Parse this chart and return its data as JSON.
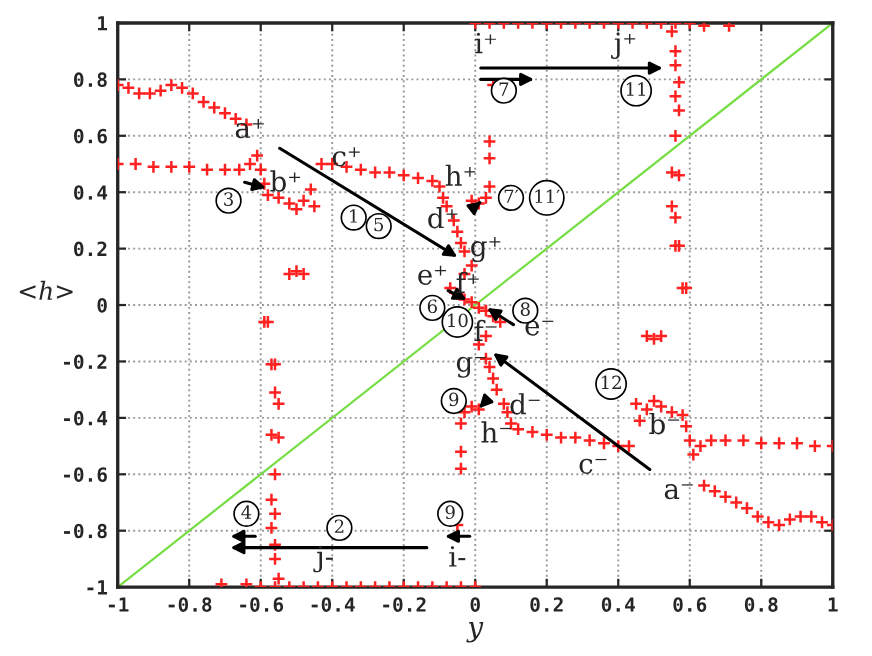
{
  "chart_data": {
    "type": "scatter",
    "xlabel": "y",
    "ylabel": "<h>",
    "xlim": [
      -1,
      1
    ],
    "ylim": [
      -1,
      1
    ],
    "xticks": [
      -1,
      -0.8,
      -0.6,
      -0.4,
      -0.2,
      0,
      0.2,
      0.4,
      0.6,
      0.8,
      1
    ],
    "yticks": [
      -1,
      -0.8,
      -0.6,
      -0.4,
      -0.2,
      0,
      0.2,
      0.4,
      0.6,
      0.8,
      1
    ],
    "grid": true,
    "series": [
      {
        "color": "#ff2020",
        "marker": "cross",
        "x": [
          -1,
          -0.97,
          -0.94,
          -0.91,
          -0.88,
          -0.85,
          -0.82,
          -0.79,
          -0.76,
          -0.73,
          -0.7,
          -0.67,
          -0.64,
          -1,
          -0.95,
          -0.9,
          -0.85,
          -0.8,
          -0.75,
          -0.7,
          -0.66,
          -0.63,
          -0.61,
          -0.6,
          -0.59,
          -0.58,
          -0.55,
          -0.52,
          -0.5,
          -0.48,
          -0.46,
          -0.45,
          -0.43,
          -0.4,
          -0.36,
          -0.32,
          -0.28,
          -0.24,
          -0.2,
          -0.16,
          -0.12,
          -0.1,
          -0.09,
          -0.08,
          -0.06,
          -0.05,
          -0.04,
          -0.03,
          -0.03,
          -0.01,
          -0.07,
          -0.05,
          -0.03,
          -0.01,
          -0.01,
          0.01,
          0.03,
          0.04,
          -0.52,
          -0.5,
          -0.48,
          0.04,
          0.04,
          0.05,
          0,
          0.04,
          0.08,
          0.12,
          0.16,
          0.2,
          0.24,
          0.28,
          0.32,
          0.36,
          0.4,
          0.44,
          0.48,
          0.52,
          0.56,
          0.6,
          0.64,
          0.71,
          0.55,
          0.56,
          0.56,
          0.57,
          0.56,
          0.57,
          0.56,
          0.55,
          0.57,
          0.55,
          0.56,
          0.56,
          0.57,
          0.59,
          0.58
        ],
        "values": [
          0.78,
          0.77,
          0.75,
          0.75,
          0.76,
          0.78,
          0.77,
          0.75,
          0.72,
          0.7,
          0.68,
          0.66,
          0.64,
          0.5,
          0.5,
          0.49,
          0.49,
          0.49,
          0.48,
          0.48,
          0.48,
          0.5,
          0.53,
          0.48,
          0.43,
          0.39,
          0.38,
          0.36,
          0.34,
          0.37,
          0.41,
          0.35,
          0.5,
          0.5,
          0.49,
          0.48,
          0.47,
          0.47,
          0.46,
          0.45,
          0.44,
          0.42,
          0.38,
          0.35,
          0.3,
          0.26,
          0.22,
          0.19,
          0.11,
          0.14,
          0.06,
          0.04,
          0.02,
          0.01,
          0.37,
          0.36,
          0.38,
          0.42,
          0.11,
          0.12,
          0.11,
          0.58,
          0.52,
          0.78,
          1,
          1,
          1,
          1,
          1,
          1,
          1,
          1,
          1,
          1,
          1,
          1,
          1,
          1,
          1,
          1,
          0.99,
          0.99,
          0.97,
          0.9,
          0.85,
          0.79,
          0.74,
          0.69,
          0.6,
          0.47,
          0.46,
          0.35,
          0.31,
          0.21,
          0.21,
          0.06,
          0.06
        ]
      },
      {
        "color": "#ff2020",
        "marker": "cross",
        "x": [
          1,
          0.97,
          0.94,
          0.91,
          0.88,
          0.85,
          0.82,
          0.79,
          0.76,
          0.73,
          0.7,
          0.67,
          0.64,
          1,
          0.95,
          0.9,
          0.85,
          0.8,
          0.75,
          0.7,
          0.66,
          0.63,
          0.61,
          0.6,
          0.59,
          0.58,
          0.55,
          0.52,
          0.5,
          0.48,
          0.46,
          0.45,
          0.43,
          0.4,
          0.36,
          0.32,
          0.28,
          0.24,
          0.2,
          0.16,
          0.12,
          0.1,
          0.09,
          0.08,
          0.06,
          0.05,
          0.04,
          0.03,
          0.03,
          0.01,
          0.07,
          0.05,
          0.03,
          0.01,
          0.01,
          -0.01,
          -0.03,
          -0.04,
          0.52,
          0.5,
          0.48,
          -0.04,
          -0.04,
          -0.05,
          0,
          -0.04,
          -0.08,
          -0.12,
          -0.16,
          -0.2,
          -0.24,
          -0.28,
          -0.32,
          -0.36,
          -0.4,
          -0.44,
          -0.48,
          -0.52,
          -0.56,
          -0.6,
          -0.64,
          -0.71,
          -0.55,
          -0.56,
          -0.56,
          -0.57,
          -0.56,
          -0.57,
          -0.56,
          -0.55,
          -0.57,
          -0.55,
          -0.56,
          -0.56,
          -0.57,
          -0.59,
          -0.58
        ],
        "values": [
          -0.78,
          -0.77,
          -0.75,
          -0.75,
          -0.76,
          -0.78,
          -0.77,
          -0.75,
          -0.72,
          -0.7,
          -0.68,
          -0.66,
          -0.64,
          -0.5,
          -0.5,
          -0.49,
          -0.49,
          -0.49,
          -0.48,
          -0.48,
          -0.48,
          -0.5,
          -0.53,
          -0.48,
          -0.43,
          -0.39,
          -0.38,
          -0.36,
          -0.34,
          -0.37,
          -0.41,
          -0.35,
          -0.5,
          -0.5,
          -0.49,
          -0.48,
          -0.47,
          -0.47,
          -0.46,
          -0.45,
          -0.44,
          -0.42,
          -0.38,
          -0.35,
          -0.3,
          -0.26,
          -0.22,
          -0.19,
          -0.11,
          -0.14,
          -0.06,
          -0.04,
          -0.02,
          -0.01,
          -0.37,
          -0.36,
          -0.38,
          -0.42,
          -0.11,
          -0.12,
          -0.11,
          -0.58,
          -0.52,
          -0.78,
          -1,
          -1,
          -1,
          -1,
          -1,
          -1,
          -1,
          -1,
          -1,
          -1,
          -1,
          -1,
          -1,
          -1,
          -1,
          -1,
          -0.99,
          -0.99,
          -0.97,
          -0.9,
          -0.85,
          -0.79,
          -0.74,
          -0.69,
          -0.6,
          -0.47,
          -0.46,
          -0.35,
          -0.31,
          -0.21,
          -0.21,
          -0.06,
          -0.06
        ]
      },
      {
        "type": "line",
        "color": "#77dd44",
        "x": [
          -1,
          1
        ],
        "values": [
          -1,
          1
        ]
      }
    ],
    "annotations": [
      {
        "text": "a⁺",
        "x": -0.05,
        "y": 0.17
      },
      "b⁺",
      "c⁺",
      "d⁺",
      "e⁺",
      "f⁺",
      "g⁺",
      "h⁺",
      "i⁺",
      "j⁺",
      {
        "text": "a⁻",
        "x": 0.05,
        "y": -0.17
      },
      "b⁻",
      "c⁻",
      "d⁻",
      "e⁻",
      "f⁻",
      "g⁻",
      "h⁻",
      "i-",
      "j-",
      "1",
      "2",
      "3",
      "4",
      "5",
      "6",
      "7",
      "8",
      "9",
      "9",
      "10",
      "11",
      "7′",
      "11′",
      "12"
    ]
  }
}
